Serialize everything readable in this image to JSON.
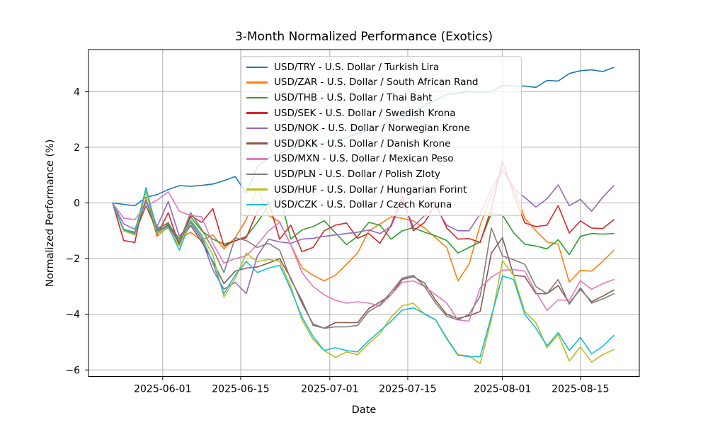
{
  "title": "3-Month Normalized Performance (Exotics)",
  "chart_data": {
    "type": "line",
    "title": "3-Month Normalized Performance (Exotics)",
    "xlabel": "Date",
    "ylabel": "Normalized Performance (%)",
    "grid": true,
    "legend_position": "upper center-left inside plot",
    "background_color": "#ffffff",
    "grid_color": "#b0b0b0",
    "spine_color": "#000000",
    "ylim": [
      -6.23,
      5.51
    ],
    "xlim": [
      "2025-05-19",
      "2025-08-25"
    ],
    "y_ticks": [
      {
        "label": "4",
        "value": 4
      },
      {
        "label": "2",
        "value": 2
      },
      {
        "label": "0",
        "value": 0
      },
      {
        "label": "−2",
        "value": -2
      },
      {
        "label": "−4",
        "value": -4
      },
      {
        "label": "−6",
        "value": -6
      }
    ],
    "x_ticks": [
      "2025-06-01",
      "2025-06-15",
      "2025-07-01",
      "2025-07-15",
      "2025-08-01",
      "2025-08-15"
    ],
    "x": [
      "2025-05-23",
      "2025-05-25",
      "2025-05-27",
      "2025-05-29",
      "2025-05-31",
      "2025-06-02",
      "2025-06-04",
      "2025-06-06",
      "2025-06-08",
      "2025-06-10",
      "2025-06-12",
      "2025-06-14",
      "2025-06-16",
      "2025-06-18",
      "2025-06-20",
      "2025-06-22",
      "2025-06-24",
      "2025-06-26",
      "2025-06-28",
      "2025-06-30",
      "2025-07-02",
      "2025-07-04",
      "2025-07-06",
      "2025-07-08",
      "2025-07-10",
      "2025-07-12",
      "2025-07-14",
      "2025-07-16",
      "2025-07-18",
      "2025-07-20",
      "2025-07-22",
      "2025-07-24",
      "2025-07-26",
      "2025-07-28",
      "2025-07-30",
      "2025-08-01",
      "2025-08-03",
      "2025-08-05",
      "2025-08-07",
      "2025-08-09",
      "2025-08-11",
      "2025-08-13",
      "2025-08-15",
      "2025-08-17",
      "2025-08-19",
      "2025-08-21"
    ],
    "series": [
      {
        "pair": "USD/TRY",
        "name": "USD/TRY - U.S. Dollar / Turkish Lira",
        "color": "#1f77b4",
        "values": [
          0,
          -0.05,
          -0.1,
          0.2,
          0.3,
          0.48,
          0.62,
          0.6,
          0.63,
          0.68,
          0.8,
          0.95,
          0.35,
          1.3,
          1.62,
          1.78,
          1.95,
          2.05,
          2.1,
          2.15,
          2.25,
          2.35,
          2.5,
          2.6,
          2.75,
          2.93,
          3.05,
          3.25,
          3.5,
          3.7,
          3.9,
          3.95,
          4.0,
          3.97,
          4.0,
          4.22,
          4.2,
          4.2,
          4.15,
          4.4,
          4.38,
          4.65,
          4.75,
          4.78,
          4.72,
          4.87
        ]
      },
      {
        "pair": "USD/ZAR",
        "name": "USD/ZAR - U.S. Dollar / South African Rand",
        "color": "#ff7f0e",
        "values": [
          0,
          -1.0,
          -1.15,
          0.15,
          -1.2,
          -0.85,
          -1.3,
          -1.05,
          -1.35,
          -1.15,
          -1.65,
          -1.25,
          -0.6,
          0.55,
          -0.45,
          -0.68,
          -1.5,
          -2.33,
          -2.6,
          -2.8,
          -2.6,
          -2.2,
          -1.8,
          -1.0,
          -0.76,
          -0.5,
          -0.55,
          -0.65,
          -0.9,
          -1.25,
          -1.6,
          -2.8,
          -2.2,
          -0.8,
          0.3,
          1.15,
          0.6,
          -0.55,
          -1.0,
          -1.4,
          -1.48,
          -2.85,
          -2.42,
          -2.45,
          -2.1,
          -1.7
        ]
      },
      {
        "pair": "USD/THB",
        "name": "USD/THB - U.S. Dollar / Thai Baht",
        "color": "#2ca02c",
        "values": [
          0,
          -0.95,
          -1.05,
          0.05,
          -0.9,
          -0.75,
          -1.3,
          -0.5,
          -1.0,
          -1.3,
          -1.48,
          -1.37,
          -1.2,
          -0.7,
          -0.1,
          0.3,
          -1.3,
          -0.97,
          -0.85,
          -0.64,
          -1.07,
          -1.5,
          -1.2,
          -0.7,
          -0.8,
          -1.3,
          -1.0,
          -0.89,
          -1.05,
          -1.18,
          -1.35,
          -1.8,
          -1.6,
          -1.4,
          -0.38,
          -0.43,
          -1.07,
          -1.48,
          -1.55,
          -1.65,
          -1.32,
          -1.86,
          -1.2,
          -1.1,
          -1.12,
          -1.1
        ]
      },
      {
        "pair": "USD/SEK",
        "name": "USD/SEK - U.S. Dollar / Swedish Krona",
        "color": "#d62728",
        "values": [
          0,
          -1.35,
          -1.42,
          0.55,
          -1.15,
          -0.35,
          -1.55,
          -0.45,
          -0.7,
          -0.2,
          -1.55,
          -1.35,
          -1.25,
          -0.3,
          0.05,
          -1.3,
          -0.8,
          -1.75,
          -1.6,
          -1.0,
          -0.8,
          -0.72,
          -1.27,
          -1.1,
          -1.45,
          -0.8,
          0.25,
          -1.0,
          -0.7,
          -0.05,
          -0.9,
          -1.3,
          -1.28,
          -1.42,
          -0.2,
          1.5,
          0.32,
          -0.72,
          -0.85,
          -0.8,
          -0.1,
          -1.08,
          -0.65,
          -0.9,
          -0.92,
          -0.6
        ]
      },
      {
        "pair": "USD/NOK",
        "name": "USD/NOK - U.S. Dollar / Norwegian Krone",
        "color": "#9467bd",
        "values": [
          0,
          -0.75,
          -0.95,
          0.1,
          -0.85,
          0.05,
          -1.2,
          -0.7,
          -1.3,
          -2.4,
          -3.1,
          -2.85,
          -3.26,
          -1.9,
          -1.3,
          -1.4,
          -1.45,
          -1.3,
          -1.27,
          -1.2,
          -1.15,
          -1.1,
          -1.05,
          -0.97,
          -1.1,
          -0.85,
          0.1,
          -0.85,
          -0.45,
          -0.15,
          -0.8,
          -1.0,
          -1.0,
          -0.4,
          0.5,
          1.2,
          0.5,
          0.2,
          -0.15,
          0.15,
          0.65,
          -0.1,
          0.13,
          -0.3,
          0.2,
          0.62
        ]
      },
      {
        "pair": "USD/DKK",
        "name": "USD/DKK - U.S. Dollar / Danish Krone",
        "color": "#8c564b",
        "values": [
          0,
          -1.0,
          -1.1,
          -0.1,
          -1.0,
          -0.8,
          -1.45,
          -0.8,
          -1.4,
          -2.1,
          -2.9,
          -2.45,
          -2.34,
          -2.3,
          -2.16,
          -2.0,
          -2.7,
          -3.6,
          -4.35,
          -4.5,
          -4.3,
          -4.3,
          -4.3,
          -3.8,
          -3.56,
          -3.3,
          -2.75,
          -2.65,
          -2.88,
          -3.5,
          -4.0,
          -4.15,
          -4.05,
          -3.9,
          -1.8,
          -1.25,
          -2.6,
          -2.64,
          -3.26,
          -3.26,
          -2.97,
          -3.6,
          -3.1,
          -3.55,
          -3.35,
          -3.13
        ]
      },
      {
        "pair": "USD/MXN",
        "name": "USD/MXN - U.S. Dollar / Mexican Peso",
        "color": "#e377c2",
        "values": [
          0,
          -0.55,
          -0.6,
          -0.1,
          0.1,
          0.4,
          -0.3,
          -0.45,
          -0.5,
          -1.45,
          -2.16,
          -2.0,
          -1.9,
          -1.5,
          -1.0,
          -0.7,
          -1.5,
          -2.5,
          -3.0,
          -3.3,
          -3.5,
          -3.6,
          -3.55,
          -3.6,
          -3.7,
          -3.3,
          -2.85,
          -2.8,
          -3.0,
          -3.3,
          -3.6,
          -4.2,
          -4.25,
          -3.05,
          -2.67,
          -2.42,
          -2.39,
          -2.45,
          -3.2,
          -3.86,
          -3.48,
          -3.5,
          -2.8,
          -3.1,
          -2.9,
          -2.75
        ]
      },
      {
        "pair": "USD/PLN",
        "name": "USD/PLN - U.S. Dollar / Polish Zloty",
        "color": "#7f7f7f",
        "values": [
          0,
          -0.95,
          -1.05,
          0.5,
          -0.95,
          -0.7,
          -1.4,
          -0.35,
          -0.95,
          -1.65,
          -2.5,
          -1.25,
          -1.35,
          -1.6,
          -1.45,
          -1.7,
          -2.75,
          -3.5,
          -4.4,
          -4.5,
          -4.45,
          -4.45,
          -4.4,
          -3.9,
          -3.66,
          -3.2,
          -2.7,
          -2.6,
          -3.0,
          -3.6,
          -4.07,
          -4.2,
          -4.0,
          -3.35,
          -0.9,
          -1.9,
          -2.04,
          -2.2,
          -3.0,
          -3.26,
          -2.75,
          -3.64,
          -3.05,
          -3.6,
          -3.45,
          -3.26
        ]
      },
      {
        "pair": "USD/HUF",
        "name": "USD/HUF - U.S. Dollar / Hungarian Forint",
        "color": "#bcbd22",
        "values": [
          0,
          -1.0,
          -1.15,
          0.4,
          -1.1,
          -0.9,
          -1.55,
          -0.6,
          -1.15,
          -1.86,
          -3.38,
          -2.72,
          -1.8,
          -2.11,
          -2.03,
          -2.1,
          -3.0,
          -4.2,
          -4.9,
          -5.3,
          -5.55,
          -5.35,
          -5.45,
          -5.05,
          -4.7,
          -4.1,
          -3.7,
          -3.6,
          -4.0,
          -4.2,
          -4.85,
          -5.45,
          -5.5,
          -5.77,
          -4.2,
          -2.08,
          -2.6,
          -3.9,
          -4.3,
          -5.2,
          -4.73,
          -5.68,
          -5.17,
          -5.72,
          -5.45,
          -5.27
        ]
      },
      {
        "pair": "USD/CZK",
        "name": "USD/CZK - U.S. Dollar / Czech Koruna",
        "color": "#17becf",
        "values": [
          0,
          -0.95,
          -1.1,
          0.55,
          -1.05,
          -0.85,
          -1.7,
          -0.65,
          -1.2,
          -2.16,
          -3.26,
          -2.6,
          -2.1,
          -2.5,
          -2.34,
          -2.24,
          -3.1,
          -4.1,
          -4.8,
          -5.3,
          -5.2,
          -5.3,
          -5.35,
          -4.95,
          -4.6,
          -4.25,
          -3.85,
          -3.77,
          -3.98,
          -4.2,
          -4.88,
          -5.47,
          -5.52,
          -5.52,
          -4.07,
          -2.62,
          -2.75,
          -4.0,
          -4.5,
          -5.13,
          -4.66,
          -5.3,
          -4.83,
          -5.42,
          -5.15,
          -4.76
        ]
      }
    ]
  }
}
